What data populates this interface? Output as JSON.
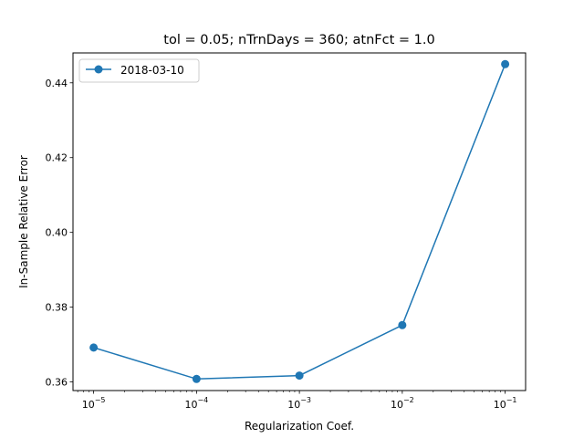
{
  "chart_data": {
    "type": "line",
    "title": "tol = 0.05; nTrnDays = 360; atnFct = 1.0",
    "xlabel": "Regularization Coef.",
    "ylabel": "In-Sample Relative Error",
    "x_scale": "log",
    "x_tick_values": [
      1e-05,
      0.0001,
      0.001,
      0.01,
      0.1
    ],
    "x_tick_exponents": [
      "−5",
      "−4",
      "−3",
      "−2",
      "−1"
    ],
    "y_ticks": [
      "0.36",
      "0.38",
      "0.40",
      "0.42",
      "0.44"
    ],
    "y_tick_values": [
      0.36,
      0.38,
      0.4,
      0.42,
      0.44
    ],
    "xlim": [
      6.3e-06,
      0.158
    ],
    "ylim": [
      0.3577,
      0.448
    ],
    "grid": false,
    "legend_position": "top-left",
    "series": [
      {
        "name": "2018-03-10",
        "color": "#1f77b4",
        "marker": "circle",
        "x": [
          1e-05,
          0.0001,
          0.001,
          0.01,
          0.1
        ],
        "y": [
          0.3692,
          0.3608,
          0.3617,
          0.3752,
          0.445
        ]
      }
    ]
  }
}
